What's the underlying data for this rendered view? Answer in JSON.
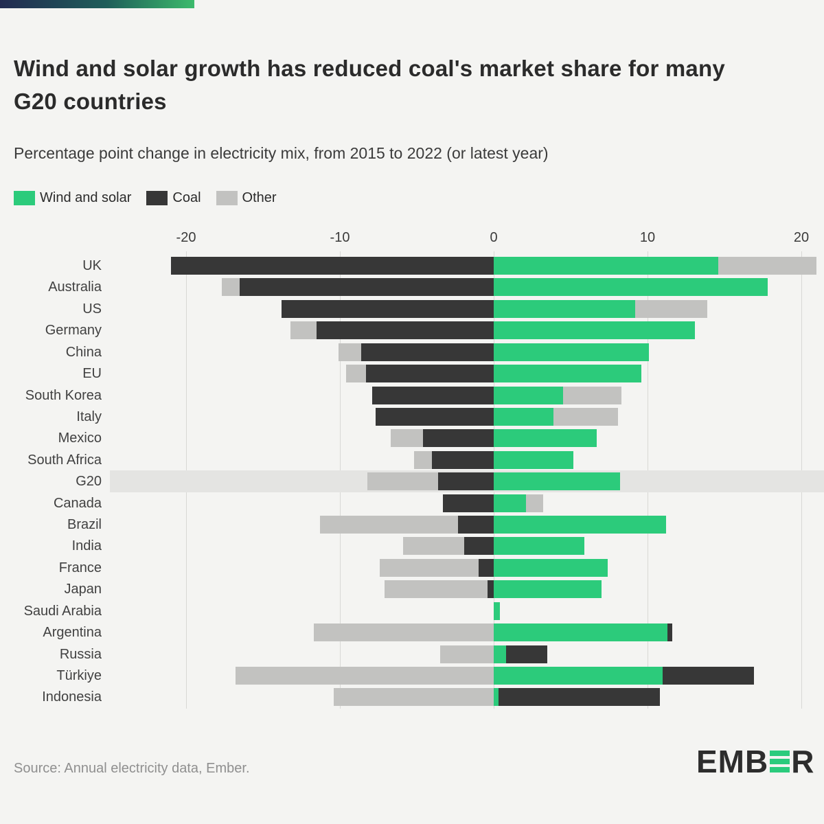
{
  "header": {
    "title_line1": "Wind and solar growth has reduced coal's market share for many",
    "title_line2": "G20  countries",
    "subtitle": "Percentage point change in electricity mix, from 2015 to 2022 (or latest year)"
  },
  "legend": {
    "items": [
      {
        "label": "Wind and solar",
        "color": "#2ccb7b"
      },
      {
        "label": "Coal",
        "color": "#373737"
      },
      {
        "label": "Other",
        "color": "#c2c2c0"
      }
    ]
  },
  "chart_data": {
    "type": "bar",
    "orientation": "horizontal",
    "diverging": true,
    "title": "Wind and solar growth has reduced coal's market share for many G20 countries",
    "subtitle": "Percentage point change in electricity mix, from 2015 to 2022 (or latest year)",
    "unit": "percentage points",
    "x_ticks": [
      -20,
      -10,
      0,
      10,
      20
    ],
    "xlim": [
      -25,
      21.5
    ],
    "grid": true,
    "legend_position": "top-left",
    "highlighted_category": "G20",
    "categories": [
      "UK",
      "Australia",
      "US",
      "Germany",
      "China",
      "EU",
      "South Korea",
      "Italy",
      "Mexico",
      "South Africa",
      "G20",
      "Canada",
      "Brazil",
      "India",
      "France",
      "Japan",
      "Saudi Arabia",
      "Argentina",
      "Russia",
      "Türkiye",
      "Indonesia"
    ],
    "series": [
      {
        "name": "Wind and solar",
        "color": "#2ccb7b",
        "values": [
          14.6,
          17.8,
          9.2,
          13.1,
          10.1,
          9.6,
          4.5,
          3.9,
          6.7,
          5.2,
          8.2,
          2.1,
          11.2,
          5.9,
          7.4,
          7.0,
          0.4,
          11.3,
          0.8,
          11.0,
          0.3
        ]
      },
      {
        "name": "Coal",
        "color": "#373737",
        "values": [
          -21.0,
          -16.5,
          -13.8,
          -11.5,
          -8.6,
          -8.3,
          -7.9,
          -7.7,
          -4.6,
          -4.0,
          -3.6,
          -3.3,
          -2.3,
          -1.9,
          -1.0,
          -0.4,
          0,
          0.3,
          2.7,
          5.9,
          10.5
        ]
      },
      {
        "name": "Other",
        "color": "#c2c2c0",
        "values": [
          6.4,
          -1.2,
          4.7,
          -1.7,
          -1.5,
          -1.3,
          3.8,
          4.2,
          -2.1,
          -1.2,
          -4.6,
          1.1,
          -9.0,
          -4.0,
          -6.4,
          -6.7,
          0,
          -11.7,
          -3.5,
          -16.8,
          -10.4
        ]
      }
    ]
  },
  "footer": {
    "source": "Source: Annual electricity data, Ember.",
    "logo": {
      "prefix": "EMB",
      "suffix": "R"
    }
  }
}
